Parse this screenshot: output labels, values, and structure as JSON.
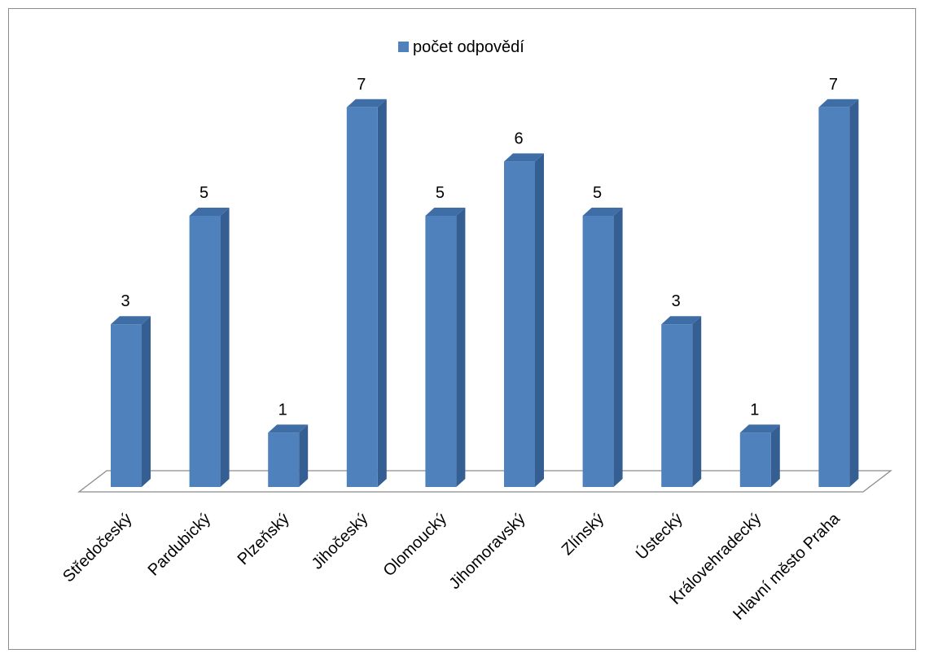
{
  "chart_data": {
    "type": "bar",
    "title": "",
    "xlabel": "",
    "ylabel": "",
    "ylim": [
      0,
      7
    ],
    "grid": false,
    "legend": "top-center",
    "style": "3d-column",
    "categories": [
      "Středočeský",
      "Pardubický",
      "Plzeňský",
      "Jihočeský",
      "Olomoucký",
      "Jihomoravský",
      "Zlínský",
      "Ústecký",
      "Královehradecký",
      "Hlavní město Praha"
    ],
    "series": [
      {
        "name": "počet odpovědí",
        "values": [
          3,
          5,
          1,
          7,
          5,
          6,
          5,
          3,
          1,
          7
        ],
        "color": "#4f81bd"
      }
    ]
  }
}
